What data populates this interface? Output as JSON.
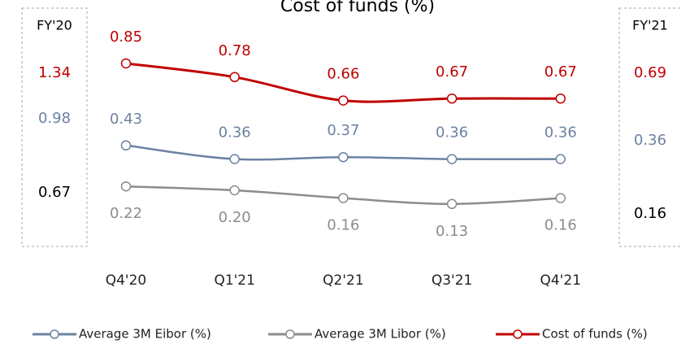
{
  "chart_data": {
    "type": "line",
    "title": "Cost of funds (%)",
    "categories": [
      "Q4'20",
      "Q1'21",
      "Q2'21",
      "Q3'21",
      "Q4'21"
    ],
    "series": [
      {
        "name": "Average 3M Eibor (%)",
        "color": "#6c82a2",
        "values": [
          0.43,
          0.36,
          0.37,
          0.36,
          0.36
        ],
        "value_labels": [
          "0.43",
          "0.36",
          "0.37",
          "0.36",
          "0.36"
        ],
        "label_position": "above"
      },
      {
        "name": "Average 3M Libor (%)",
        "color": "#8c8c8c",
        "values": [
          0.22,
          0.2,
          0.16,
          0.13,
          0.16
        ],
        "value_labels": [
          "0.22",
          "0.20",
          "0.16",
          "0.13",
          "0.16"
        ],
        "label_position": "below"
      },
      {
        "name": "Cost of funds (%)",
        "color": "#c00000",
        "values": [
          0.85,
          0.78,
          0.66,
          0.67,
          0.67
        ],
        "value_labels": [
          "0.85",
          "0.78",
          "0.66",
          "0.67",
          "0.67"
        ],
        "label_position": "above"
      }
    ],
    "ylim": [
      0,
      1
    ],
    "summaries": [
      {
        "label": "FY'20",
        "values": [
          1.34,
          0.98,
          0.67
        ],
        "colors": [
          "#c00000",
          "#6c82a2",
          "#000000"
        ]
      },
      {
        "label": "FY'21",
        "values": [
          0.69,
          0.36,
          0.16
        ],
        "colors": [
          "#c00000",
          "#6c82a2",
          "#000000"
        ]
      }
    ]
  }
}
